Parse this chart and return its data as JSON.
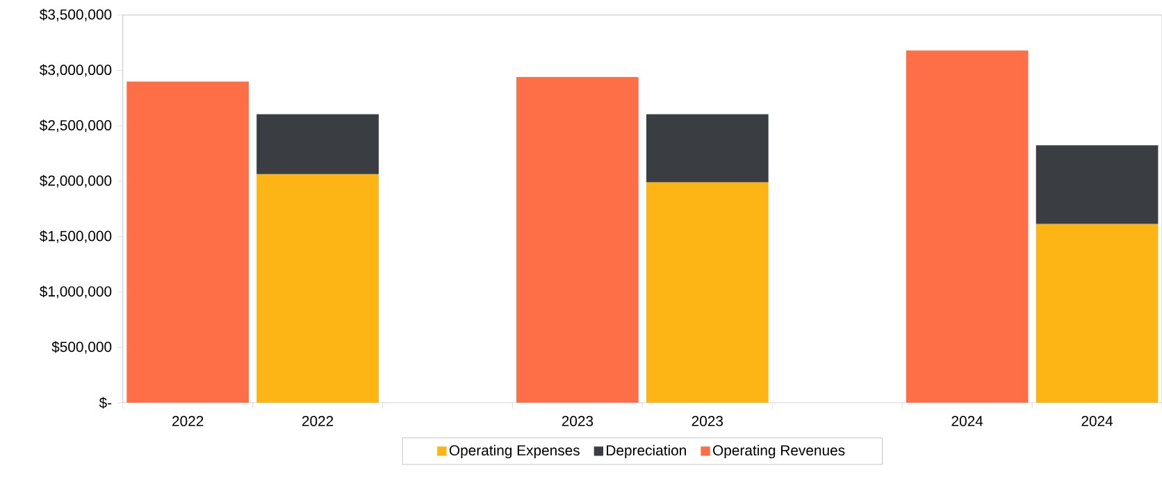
{
  "chart_data": {
    "type": "bar",
    "stacked": true,
    "categories": [
      "2022",
      "2022",
      null,
      "2023",
      "2023",
      null,
      "2024",
      "2024"
    ],
    "series": [
      {
        "name": "Operating Expenses",
        "color": "#fdb515",
        "values": [
          null,
          2065000,
          null,
          null,
          1990000,
          null,
          null,
          1615000
        ]
      },
      {
        "name": "Depreciation",
        "color": "#3a3e42",
        "values": [
          null,
          540000,
          null,
          null,
          615000,
          null,
          null,
          710000
        ]
      },
      {
        "name": "Operating Revenues",
        "color": "#ff6f47",
        "values": [
          2900000,
          null,
          null,
          2940000,
          null,
          null,
          3180000,
          null
        ]
      }
    ],
    "ylim": [
      0,
      3500000
    ],
    "yticks": [
      {
        "value": 0,
        "label": "$-"
      },
      {
        "value": 500000,
        "label": "$500,000"
      },
      {
        "value": 1000000,
        "label": "$1,000,000"
      },
      {
        "value": 1500000,
        "label": "$1,500,000"
      },
      {
        "value": 2000000,
        "label": "$2,000,000"
      },
      {
        "value": 2500000,
        "label": "$2,500,000"
      },
      {
        "value": 3000000,
        "label": "$3,000,000"
      },
      {
        "value": 3500000,
        "label": "$3,500,000"
      }
    ],
    "grid": false,
    "legend": "bottom"
  }
}
